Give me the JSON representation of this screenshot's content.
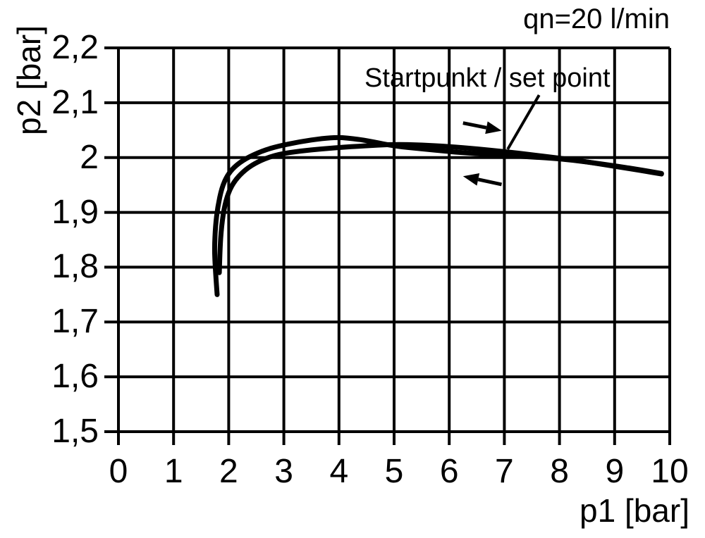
{
  "page": {
    "background": "#ffffff",
    "ink": "#000000"
  },
  "chart_data": {
    "type": "line",
    "title": "qn=20 l/min",
    "xlabel": "p1 [bar]",
    "ylabel": "p2 [bar]",
    "xlim": [
      0,
      10
    ],
    "ylim": [
      1.5,
      2.2
    ],
    "grid": true,
    "x_ticks": {
      "values": [
        0,
        1,
        2,
        3,
        4,
        5,
        6,
        7,
        8,
        9,
        10
      ],
      "labels": [
        "0",
        "1",
        "2",
        "3",
        "4",
        "5",
        "6",
        "7",
        "8",
        "9",
        "10"
      ]
    },
    "y_ticks": {
      "values": [
        2.2,
        2.1,
        2.0,
        1.9,
        1.8,
        1.7,
        1.6,
        1.5
      ],
      "labels": [
        "2,2",
        "2,1",
        "2",
        "1,9",
        "1,8",
        "1,7",
        "1,6",
        "1,5"
      ]
    },
    "annotation": {
      "text": "Startpunkt / set point",
      "leader_from": [
        7.63,
        2.114
      ],
      "leader_to": [
        7.06,
        2.015
      ]
    },
    "arrows": [
      {
        "name": "forward-direction-arrow",
        "from": [
          6.25,
          2.063
        ],
        "to": [
          6.95,
          2.049
        ]
      },
      {
        "name": "return-direction-arrow",
        "from": [
          6.95,
          1.951
        ],
        "to": [
          6.25,
          1.966
        ]
      }
    ],
    "series": [
      {
        "name": "pressure-increasing",
        "x": [
          1.79,
          1.755,
          1.74,
          1.76,
          1.8,
          1.875,
          1.97,
          2.1,
          2.3,
          2.6,
          2.9,
          3.3,
          3.7,
          4.0,
          4.3,
          4.6,
          5.0,
          5.5,
          6.0,
          6.5,
          7.0,
          7.5,
          8.0,
          8.5,
          9.0,
          9.5,
          9.85
        ],
        "y": [
          1.75,
          1.8,
          1.835,
          1.875,
          1.91,
          1.945,
          1.967,
          1.983,
          1.998,
          2.012,
          2.021,
          2.029,
          2.035,
          2.037,
          2.034,
          2.029,
          2.021,
          2.016,
          2.011,
          2.007,
          2.004,
          2.001,
          1.998,
          1.992,
          1.985,
          1.977,
          1.971
        ]
      },
      {
        "name": "pressure-decreasing",
        "x": [
          1.83,
          1.84,
          1.87,
          1.93,
          2.02,
          2.15,
          2.35,
          2.6,
          2.9,
          3.3,
          3.7,
          4.1,
          4.6,
          5.0,
          5.5,
          6.0,
          6.5,
          7.0,
          7.5,
          8.0,
          8.5,
          9.0,
          9.5,
          9.85
        ],
        "y": [
          1.79,
          1.83,
          1.875,
          1.915,
          1.943,
          1.963,
          1.982,
          1.996,
          2.006,
          2.012,
          2.016,
          2.019,
          2.022,
          2.024,
          2.023,
          2.02,
          2.016,
          2.011,
          2.005,
          1.999,
          1.992,
          1.984,
          1.976,
          1.97
        ]
      }
    ]
  }
}
